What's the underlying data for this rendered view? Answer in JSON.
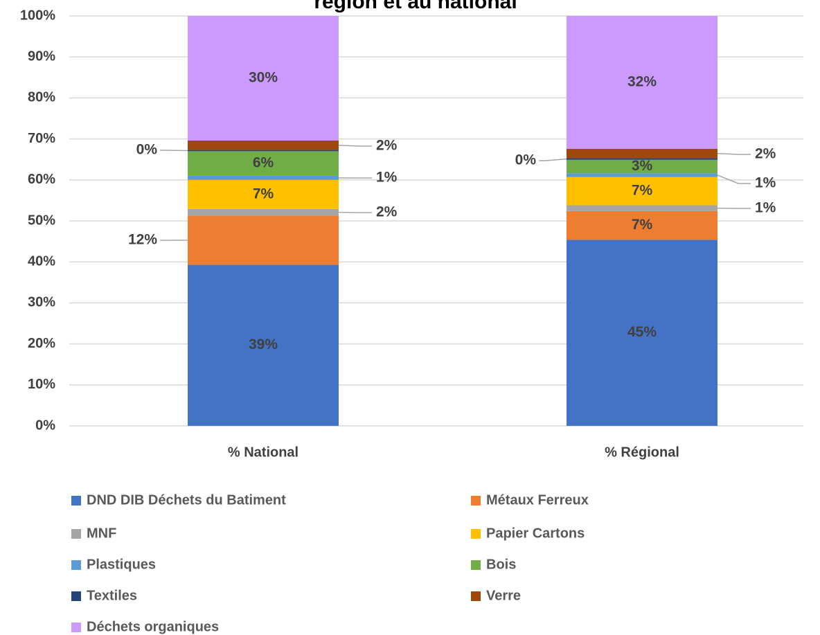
{
  "chart_data": {
    "type": "bar",
    "stacked": true,
    "title": "région et au national",
    "categories": [
      "% National",
      "% Régional"
    ],
    "ylim": [
      0,
      100
    ],
    "yticks": [
      {
        "value": 0,
        "label": "0%"
      },
      {
        "value": 10,
        "label": "10%"
      },
      {
        "value": 20,
        "label": "20%"
      },
      {
        "value": 30,
        "label": "30%"
      },
      {
        "value": 40,
        "label": "40%"
      },
      {
        "value": 50,
        "label": "50%"
      },
      {
        "value": 60,
        "label": "60%"
      },
      {
        "value": 70,
        "label": "70%"
      },
      {
        "value": 80,
        "label": "80%"
      },
      {
        "value": 90,
        "label": "90%"
      },
      {
        "value": 100,
        "label": "100%"
      }
    ],
    "grid": true,
    "legend": "bottom",
    "series": [
      {
        "name": "DND DIB Déchets du Batiment",
        "color": "#4472c4",
        "values": [
          39.3,
          45.4
        ],
        "value_labels": [
          "39%",
          "45%"
        ]
      },
      {
        "name": "Métaux Ferreux",
        "color": "#ed7d31",
        "values": [
          12.0,
          7.0
        ],
        "value_labels": [
          "12%",
          "7%"
        ]
      },
      {
        "name": "MNF",
        "color": "#a5a5a5",
        "values": [
          1.6,
          1.4
        ],
        "value_labels": [
          "2%",
          "1%"
        ]
      },
      {
        "name": "Papier Cartons",
        "color": "#ffc000",
        "values": [
          7.1,
          6.9
        ],
        "value_labels": [
          "7%",
          "7%"
        ]
      },
      {
        "name": "Plastiques",
        "color": "#5b9bd5",
        "values": [
          1.0,
          0.9
        ],
        "value_labels": [
          "1%",
          "1%"
        ]
      },
      {
        "name": "Bois",
        "color": "#70ad47",
        "values": [
          6.0,
          3.3
        ],
        "value_labels": [
          "6%",
          "3%"
        ]
      },
      {
        "name": "Textiles",
        "color": "#264478",
        "values": [
          0.3,
          0.4
        ],
        "value_labels": [
          "0%",
          "0%"
        ]
      },
      {
        "name": "Verre",
        "color": "#9e480e",
        "values": [
          2.3,
          2.3
        ],
        "value_labels": [
          "2%",
          "2%"
        ]
      },
      {
        "name": "Déchets organiques",
        "color": "#cc99ff",
        "values": [
          30.4,
          32.4
        ],
        "value_labels": [
          "30%",
          "32%"
        ]
      }
    ]
  }
}
